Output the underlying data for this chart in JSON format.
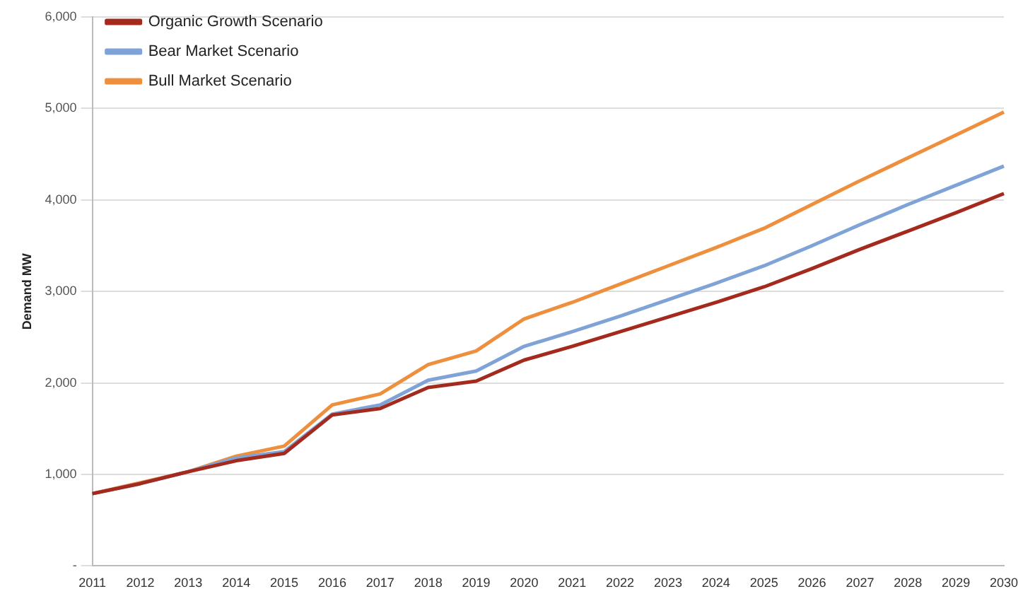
{
  "chart_data": {
    "type": "line",
    "ylabel": "Demand MW",
    "categories": [
      "2011",
      "2012",
      "2013",
      "2014",
      "2015",
      "2016",
      "2017",
      "2018",
      "2019",
      "2020",
      "2021",
      "2022",
      "2023",
      "2024",
      "2025",
      "2026",
      "2027",
      "2028",
      "2029",
      "2030"
    ],
    "series": [
      {
        "name": "Organic Growth Scenario",
        "color": "#a52a1e",
        "values": [
          790,
          900,
          1030,
          1150,
          1230,
          1650,
          1720,
          1950,
          2020,
          2250,
          2400,
          2560,
          2720,
          2880,
          3050,
          3250,
          3460,
          3660,
          3860,
          4070
        ]
      },
      {
        "name": "Bear Market Scenario",
        "color": "#7fa3d6",
        "values": [
          790,
          900,
          1030,
          1180,
          1250,
          1660,
          1760,
          2030,
          2130,
          2400,
          2560,
          2730,
          2910,
          3090,
          3280,
          3500,
          3730,
          3950,
          4160,
          4370
        ]
      },
      {
        "name": "Bull Market Scenario",
        "color": "#ee8f3e",
        "values": [
          790,
          910,
          1030,
          1200,
          1310,
          1760,
          1880,
          2200,
          2350,
          2700,
          2880,
          3080,
          3280,
          3480,
          3690,
          3950,
          4210,
          4460,
          4710,
          4960
        ]
      }
    ],
    "ylim": [
      0,
      6000
    ],
    "yticks": [
      {
        "value": 0,
        "label": "-"
      },
      {
        "value": 1000,
        "label": "1,000"
      },
      {
        "value": 2000,
        "label": "2,000"
      },
      {
        "value": 3000,
        "label": "3,000"
      },
      {
        "value": 4000,
        "label": "4,000"
      },
      {
        "value": 5000,
        "label": "5,000"
      },
      {
        "value": 6000,
        "label": "6,000"
      }
    ],
    "grid": "y",
    "legend": "top left",
    "marker": "none",
    "line_style": "solid"
  }
}
